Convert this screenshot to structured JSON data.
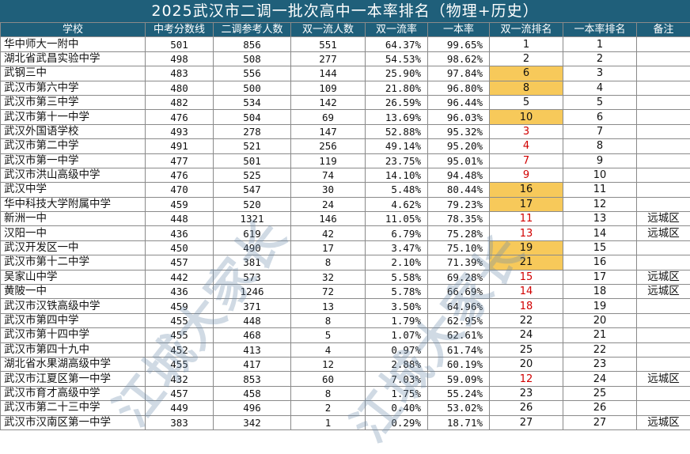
{
  "title": "2025武汉市二调一批次高中一本率排名（物理+历史）",
  "columns": [
    "学校",
    "中考分数线",
    "二调参考人数",
    "双一流人数",
    "双一流率",
    "一本率",
    "双一流排名",
    "一本率排名",
    "备注"
  ],
  "rows": [
    {
      "school": "华中师大一附中",
      "score": "501",
      "takers": "856",
      "dual": "551",
      "dual_rate": "64.37%",
      "tier1_rate": "99.65%",
      "dual_rank": "1",
      "tier1_rank": "1",
      "note": "",
      "rank_style": ""
    },
    {
      "school": "湖北省武昌实验中学",
      "score": "498",
      "takers": "508",
      "dual": "277",
      "dual_rate": "54.53%",
      "tier1_rate": "98.62%",
      "dual_rank": "2",
      "tier1_rank": "2",
      "note": "",
      "rank_style": ""
    },
    {
      "school": "武钢三中",
      "score": "483",
      "takers": "556",
      "dual": "144",
      "dual_rate": "25.90%",
      "tier1_rate": "97.84%",
      "dual_rank": "6",
      "tier1_rank": "3",
      "note": "",
      "rank_style": "hl"
    },
    {
      "school": "武汉市第六中学",
      "score": "480",
      "takers": "500",
      "dual": "109",
      "dual_rate": "21.80%",
      "tier1_rate": "96.80%",
      "dual_rank": "8",
      "tier1_rank": "4",
      "note": "",
      "rank_style": "hl"
    },
    {
      "school": "武汉市第三中学",
      "score": "482",
      "takers": "534",
      "dual": "142",
      "dual_rate": "26.59%",
      "tier1_rate": "96.44%",
      "dual_rank": "5",
      "tier1_rank": "5",
      "note": "",
      "rank_style": ""
    },
    {
      "school": "武汉市第十一中学",
      "score": "476",
      "takers": "504",
      "dual": "69",
      "dual_rate": "13.69%",
      "tier1_rate": "96.03%",
      "dual_rank": "10",
      "tier1_rank": "6",
      "note": "",
      "rank_style": "hl"
    },
    {
      "school": "武汉外国语学校",
      "score": "493",
      "takers": "278",
      "dual": "147",
      "dual_rate": "52.88%",
      "tier1_rate": "95.32%",
      "dual_rank": "3",
      "tier1_rank": "7",
      "note": "",
      "rank_style": "red"
    },
    {
      "school": "武汉市第二中学",
      "score": "491",
      "takers": "521",
      "dual": "256",
      "dual_rate": "49.14%",
      "tier1_rate": "95.20%",
      "dual_rank": "4",
      "tier1_rank": "8",
      "note": "",
      "rank_style": "red"
    },
    {
      "school": "武汉市第一中学",
      "score": "477",
      "takers": "501",
      "dual": "119",
      "dual_rate": "23.75%",
      "tier1_rate": "95.01%",
      "dual_rank": "7",
      "tier1_rank": "9",
      "note": "",
      "rank_style": "red"
    },
    {
      "school": "武汉市洪山高级中学",
      "score": "476",
      "takers": "525",
      "dual": "74",
      "dual_rate": "14.10%",
      "tier1_rate": "94.48%",
      "dual_rank": "9",
      "tier1_rank": "10",
      "note": "",
      "rank_style": "red"
    },
    {
      "school": "武汉中学",
      "score": "470",
      "takers": "547",
      "dual": "30",
      "dual_rate": "5.48%",
      "tier1_rate": "80.44%",
      "dual_rank": "16",
      "tier1_rank": "11",
      "note": "",
      "rank_style": "hl"
    },
    {
      "school": "华中科技大学附属中学",
      "score": "459",
      "takers": "520",
      "dual": "24",
      "dual_rate": "4.62%",
      "tier1_rate": "79.23%",
      "dual_rank": "17",
      "tier1_rank": "12",
      "note": "",
      "rank_style": "hl"
    },
    {
      "school": "新洲一中",
      "score": "448",
      "takers": "1321",
      "dual": "146",
      "dual_rate": "11.05%",
      "tier1_rate": "78.35%",
      "dual_rank": "11",
      "tier1_rank": "13",
      "note": "远城区",
      "rank_style": "red"
    },
    {
      "school": "汉阳一中",
      "score": "436",
      "takers": "619",
      "dual": "42",
      "dual_rate": "6.79%",
      "tier1_rate": "75.28%",
      "dual_rank": "13",
      "tier1_rank": "14",
      "note": "远城区",
      "rank_style": "red"
    },
    {
      "school": "武汉开发区一中",
      "score": "450",
      "takers": "490",
      "dual": "17",
      "dual_rate": "3.47%",
      "tier1_rate": "75.10%",
      "dual_rank": "19",
      "tier1_rank": "15",
      "note": "",
      "rank_style": "hl"
    },
    {
      "school": "武汉市第十二中学",
      "score": "457",
      "takers": "381",
      "dual": "8",
      "dual_rate": "2.10%",
      "tier1_rate": "71.39%",
      "dual_rank": "21",
      "tier1_rank": "16",
      "note": "",
      "rank_style": "hl"
    },
    {
      "school": "吴家山中学",
      "score": "442",
      "takers": "573",
      "dual": "32",
      "dual_rate": "5.58%",
      "tier1_rate": "69.28%",
      "dual_rank": "15",
      "tier1_rank": "17",
      "note": "远城区",
      "rank_style": "red"
    },
    {
      "school": "黄陂一中",
      "score": "436",
      "takers": "1246",
      "dual": "72",
      "dual_rate": "5.78%",
      "tier1_rate": "66.69%",
      "dual_rank": "14",
      "tier1_rank": "18",
      "note": "远城区",
      "rank_style": "red"
    },
    {
      "school": "武汉市汉铁高级中学",
      "score": "459",
      "takers": "371",
      "dual": "13",
      "dual_rate": "3.50%",
      "tier1_rate": "64.96%",
      "dual_rank": "18",
      "tier1_rank": "19",
      "note": "",
      "rank_style": "red"
    },
    {
      "school": "武汉市第四中学",
      "score": "455",
      "takers": "448",
      "dual": "8",
      "dual_rate": "1.79%",
      "tier1_rate": "62.95%",
      "dual_rank": "22",
      "tier1_rank": "20",
      "note": "",
      "rank_style": ""
    },
    {
      "school": "武汉市第十四中学",
      "score": "455",
      "takers": "468",
      "dual": "5",
      "dual_rate": "1.07%",
      "tier1_rate": "62.61%",
      "dual_rank": "24",
      "tier1_rank": "21",
      "note": "",
      "rank_style": ""
    },
    {
      "school": "武汉市第四十九中",
      "score": "452",
      "takers": "413",
      "dual": "4",
      "dual_rate": "0.97%",
      "tier1_rate": "61.74%",
      "dual_rank": "25",
      "tier1_rank": "22",
      "note": "",
      "rank_style": ""
    },
    {
      "school": "湖北省水果湖高级中学",
      "score": "455",
      "takers": "417",
      "dual": "12",
      "dual_rate": "2.88%",
      "tier1_rate": "60.19%",
      "dual_rank": "20",
      "tier1_rank": "23",
      "note": "",
      "rank_style": ""
    },
    {
      "school": "武汉市江夏区第一中学",
      "score": "432",
      "takers": "853",
      "dual": "60",
      "dual_rate": "7.03%",
      "tier1_rate": "59.09%",
      "dual_rank": "12",
      "tier1_rank": "24",
      "note": "远城区",
      "rank_style": "red"
    },
    {
      "school": "武汉市育才高级中学",
      "score": "457",
      "takers": "458",
      "dual": "8",
      "dual_rate": "1.75%",
      "tier1_rate": "55.24%",
      "dual_rank": "23",
      "tier1_rank": "25",
      "note": "",
      "rank_style": ""
    },
    {
      "school": "武汉市第二十三中学",
      "score": "449",
      "takers": "496",
      "dual": "2",
      "dual_rate": "0.40%",
      "tier1_rate": "53.02%",
      "dual_rank": "26",
      "tier1_rank": "26",
      "note": "",
      "rank_style": ""
    },
    {
      "school": "武汉市汉南区第一中学",
      "score": "383",
      "takers": "342",
      "dual": "1",
      "dual_rate": "0.29%",
      "tier1_rate": "18.71%",
      "dual_rank": "27",
      "tier1_rank": "27",
      "note": "远城区",
      "rank_style": ""
    }
  ],
  "watermark": {
    "line1": "江城大家长",
    "line2": "江城大家长"
  },
  "colors": {
    "header_bg": "#1f5f7a",
    "highlight": "#f7c95a",
    "red_text": "#d10000"
  }
}
